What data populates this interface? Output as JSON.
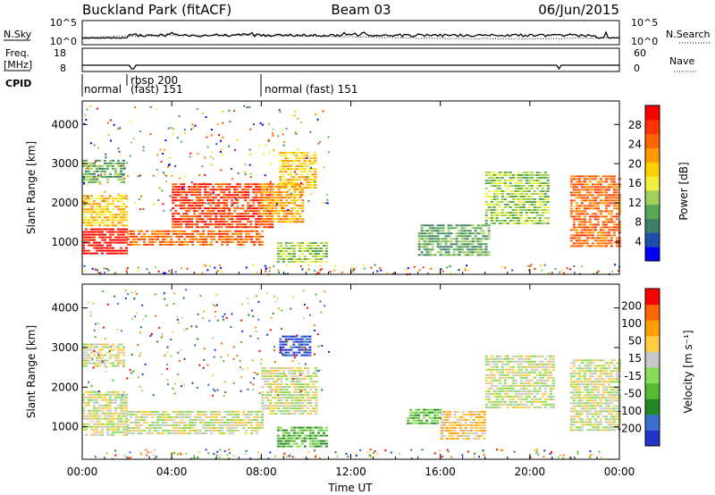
{
  "header": {
    "station": "Buckland Park (fitACF)",
    "beam": "Beam 03",
    "date": "06/Jun/2015"
  },
  "noise_panel": {
    "left_label": "N.Sky",
    "right_label": "N.Search",
    "left_ticks": [
      "10^5",
      "10^0"
    ],
    "right_ticks": [
      "10^5",
      "10^0"
    ]
  },
  "freq_panel": {
    "label_line1": "Freq.",
    "label_line2": "[MHz]",
    "left_ticks": [
      "18",
      "8"
    ],
    "right_label": "Nave",
    "right_ticks": [
      "60",
      "0"
    ]
  },
  "cpid_panel": {
    "label": "CPID",
    "segments": [
      {
        "text": "normal",
        "start": 0.0,
        "end": 2.0
      },
      {
        "text_line1": "rbsp 200",
        "text_line2": "(fast) 151",
        "start": 2.0,
        "end": 8.0
      },
      {
        "text": "normal (fast)  151",
        "start": 8.0,
        "end": 24.0
      }
    ]
  },
  "chart_data": [
    {
      "type": "heatmap",
      "title": "",
      "xlabel": "Time UT",
      "ylabel": "Slant Range [km]",
      "xlim": [
        0,
        24
      ],
      "ylim": [
        180,
        4600
      ],
      "x_ticks": [
        "00:00",
        "04:00",
        "08:00",
        "12:00",
        "16:00",
        "20:00",
        "00:00"
      ],
      "y_ticks": [
        1000,
        2000,
        3000,
        4000
      ],
      "colorbar": {
        "label": "Power [dB]",
        "ticks": [
          "4",
          "8",
          "12",
          "16",
          "20",
          "24",
          "28"
        ],
        "colors": [
          "#0000ff",
          "#1e4fb0",
          "#3f7f6a",
          "#55a855",
          "#9fd05a",
          "#f0f040",
          "#ffd000",
          "#ff9900",
          "#ff6600",
          "#ff3300",
          "#ff0000"
        ]
      },
      "regions": [
        {
          "t0": 0.0,
          "t1": 2.0,
          "r0": 700,
          "r1": 1350,
          "level": 10
        },
        {
          "t0": 0.0,
          "t1": 2.0,
          "r0": 1400,
          "r1": 2200,
          "level": 6
        },
        {
          "t0": 0.0,
          "t1": 1.8,
          "r0": 2500,
          "r1": 3100,
          "level": 3
        },
        {
          "t0": 2.0,
          "t1": 8.0,
          "r0": 900,
          "r1": 1300,
          "level": 8
        },
        {
          "t0": 4.0,
          "t1": 8.5,
          "r0": 1400,
          "r1": 2500,
          "level": 9
        },
        {
          "t0": 8.0,
          "t1": 9.8,
          "r0": 1500,
          "r1": 2500,
          "level": 7
        },
        {
          "t0": 8.8,
          "t1": 10.4,
          "r0": 2400,
          "r1": 3300,
          "level": 6
        },
        {
          "t0": 8.7,
          "t1": 10.9,
          "r0": 500,
          "r1": 1000,
          "level": 4
        },
        {
          "t0": 15.0,
          "t1": 18.2,
          "r0": 650,
          "r1": 1450,
          "level": 3
        },
        {
          "t0": 18.0,
          "t1": 20.8,
          "r0": 1500,
          "r1": 2800,
          "level": 4
        },
        {
          "t0": 21.8,
          "t1": 24.0,
          "r0": 900,
          "r1": 2700,
          "level": 8
        }
      ]
    },
    {
      "type": "heatmap",
      "title": "",
      "xlabel": "Time UT",
      "ylabel": "Slant Range [km]",
      "xlim": [
        0,
        24
      ],
      "ylim": [
        180,
        4600
      ],
      "x_ticks": [
        "00:00",
        "04:00",
        "08:00",
        "12:00",
        "16:00",
        "20:00",
        "00:00"
      ],
      "y_ticks": [
        1000,
        2000,
        3000,
        4000
      ],
      "colorbar": {
        "label": "Velocity [m s⁻¹]",
        "ticks": [
          "200",
          "100",
          "50",
          "15",
          "-15",
          "-50",
          "-100",
          "-200"
        ],
        "colors": [
          "#2233cc",
          "#3a6fd0",
          "#228822",
          "#55bb33",
          "#88dd55",
          "#c8c8c8",
          "#ffcc44",
          "#ffa000",
          "#ff6600",
          "#ff0000"
        ]
      },
      "regions": [
        {
          "t0": 0.0,
          "t1": 2.0,
          "r0": 750,
          "r1": 1900,
          "level": 5
        },
        {
          "t0": 0.0,
          "t1": 1.8,
          "r0": 2500,
          "r1": 3100,
          "level": 5
        },
        {
          "t0": 2.0,
          "t1": 8.0,
          "r0": 850,
          "r1": 1400,
          "level": 5
        },
        {
          "t0": 8.0,
          "t1": 10.5,
          "r0": 1300,
          "r1": 2500,
          "level": 5
        },
        {
          "t0": 8.8,
          "t1": 10.2,
          "r0": 2800,
          "r1": 3300,
          "level": 0
        },
        {
          "t0": 8.7,
          "t1": 10.9,
          "r0": 500,
          "r1": 1000,
          "level": 3
        },
        {
          "t0": 14.5,
          "t1": 16.0,
          "r0": 1100,
          "r1": 1450,
          "level": 3
        },
        {
          "t0": 16.0,
          "t1": 18.0,
          "r0": 700,
          "r1": 1400,
          "level": 6
        },
        {
          "t0": 18.0,
          "t1": 21.0,
          "r0": 1500,
          "r1": 2800,
          "level": 5
        },
        {
          "t0": 21.8,
          "t1": 24.0,
          "r0": 900,
          "r1": 2700,
          "level": 5
        }
      ]
    }
  ]
}
